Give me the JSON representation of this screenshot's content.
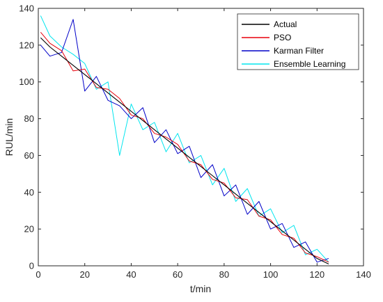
{
  "chart_data": {
    "type": "line",
    "title": "",
    "xlabel": "t/min",
    "ylabel": "RUL/min",
    "xlim": [
      0,
      140
    ],
    "ylim": [
      0,
      140
    ],
    "xticks": [
      0,
      20,
      40,
      60,
      80,
      100,
      120,
      140
    ],
    "yticks": [
      0,
      20,
      40,
      60,
      80,
      100,
      120,
      140
    ],
    "grid": false,
    "legend_position": "top-right",
    "x": [
      1,
      5,
      10,
      15,
      20,
      25,
      30,
      35,
      40,
      45,
      50,
      55,
      60,
      65,
      70,
      75,
      80,
      85,
      90,
      95,
      100,
      105,
      110,
      115,
      120,
      125
    ],
    "series": [
      {
        "name": "Actual",
        "color": "#000000",
        "values": [
          124,
          119,
          114,
          109,
          104,
          99,
          94,
          89,
          84,
          79,
          74,
          69,
          64,
          59,
          54,
          49,
          44,
          39,
          34,
          29,
          24,
          19,
          14,
          9,
          4,
          1
        ]
      },
      {
        "name": "PSO",
        "color": "#e8000b",
        "values": [
          127,
          121,
          117,
          106,
          107,
          97,
          96,
          91,
          82,
          80,
          72,
          70,
          66,
          57,
          55,
          47,
          45,
          37,
          36,
          27,
          25,
          17,
          15,
          7,
          5,
          2
        ]
      },
      {
        "name": "Karman Filter",
        "color": "#0000c8",
        "values": [
          120,
          114,
          116,
          134,
          95,
          103,
          90,
          87,
          80,
          86,
          67,
          74,
          61,
          65,
          48,
          55,
          38,
          44,
          28,
          35,
          20,
          23,
          10,
          13,
          2,
          4
        ]
      },
      {
        "name": "Ensemble Learning",
        "color": "#00e5ee",
        "values": [
          136,
          125,
          119,
          115,
          110,
          96,
          100,
          60,
          88,
          74,
          78,
          62,
          72,
          56,
          60,
          44,
          53,
          35,
          42,
          27,
          31,
          18,
          22,
          6,
          9,
          2
        ]
      }
    ]
  }
}
